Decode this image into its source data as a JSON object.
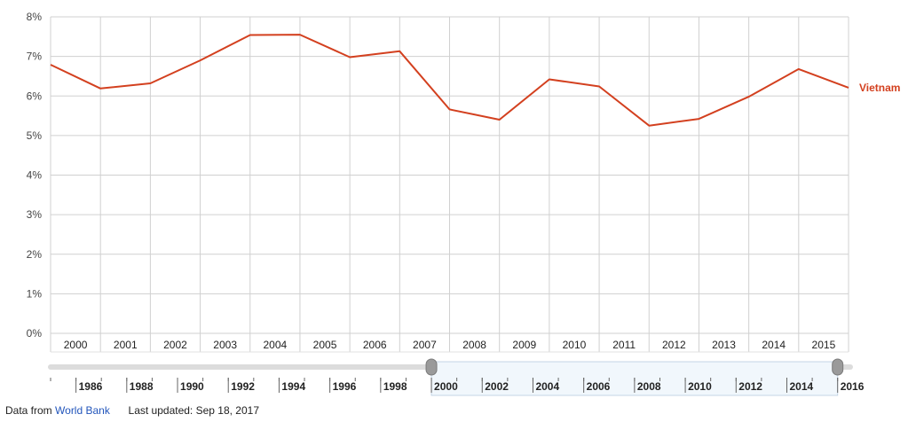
{
  "chart_data": {
    "type": "line",
    "y_ticks": [
      "0%",
      "1%",
      "2%",
      "3%",
      "4%",
      "5%",
      "6%",
      "7%",
      "8%"
    ],
    "ylim": [
      0,
      8
    ],
    "x": [
      "2000",
      "2001",
      "2002",
      "2003",
      "2004",
      "2005",
      "2006",
      "2007",
      "2008",
      "2009",
      "2010",
      "2011",
      "2012",
      "2013",
      "2014",
      "2015",
      "2016"
    ],
    "x_tick_labels": [
      "2000",
      "2001",
      "2002",
      "2003",
      "2004",
      "2005",
      "2006",
      "2007",
      "2008",
      "2009",
      "2010",
      "2011",
      "2012",
      "2013",
      "2014",
      "2015"
    ],
    "series": [
      {
        "name": "Vietnam",
        "color": "#d3401f",
        "values": [
          6.79,
          6.19,
          6.32,
          6.9,
          7.54,
          7.55,
          6.98,
          7.13,
          5.66,
          5.4,
          6.42,
          6.24,
          5.25,
          5.42,
          5.98,
          6.68,
          6.21
        ]
      }
    ],
    "grid": true,
    "timeline": {
      "range": [
        1985,
        2016.5
      ],
      "selected": [
        2000,
        2016
      ],
      "tick_labels": [
        "1986",
        "1988",
        "1990",
        "1992",
        "1994",
        "1996",
        "1998",
        "2000",
        "2002",
        "2004",
        "2006",
        "2008",
        "2010",
        "2012",
        "2014",
        "2016"
      ]
    }
  },
  "footer": {
    "source_prefix": "Data from",
    "source_link": "World Bank",
    "updated": "Last updated: Sep 18, 2017"
  }
}
